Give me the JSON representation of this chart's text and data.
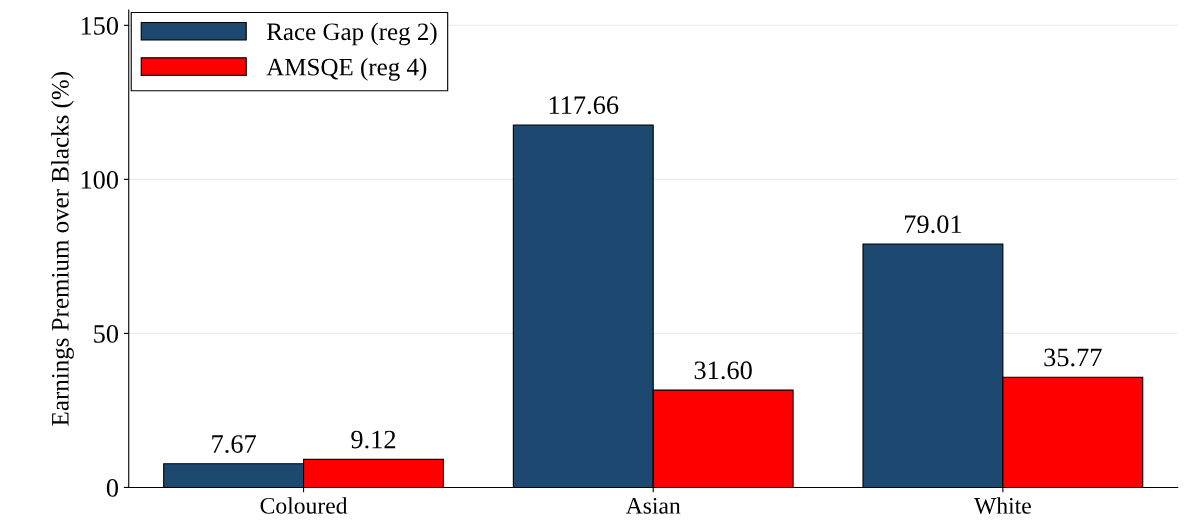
{
  "chart_data": {
    "type": "bar",
    "ylabel": "Earnings Premium over Blacks (%)",
    "categories": [
      "Coloured",
      "Asian",
      "White"
    ],
    "series": [
      {
        "name": "Race Gap (reg 2)",
        "color": "#1d4870",
        "values": [
          7.67,
          117.66,
          79.01
        ],
        "value_labels": [
          "7.67",
          "117.66",
          "79.01"
        ]
      },
      {
        "name": "AMSQE (reg 4)",
        "color": "#ff0000",
        "values": [
          9.12,
          31.6,
          35.77
        ],
        "value_labels": [
          "9.12",
          "31.60",
          "35.77"
        ]
      }
    ],
    "ylim": [
      0,
      155
    ],
    "yticks": [
      0,
      50,
      100,
      150
    ],
    "grid": "y",
    "legend": "top left"
  }
}
